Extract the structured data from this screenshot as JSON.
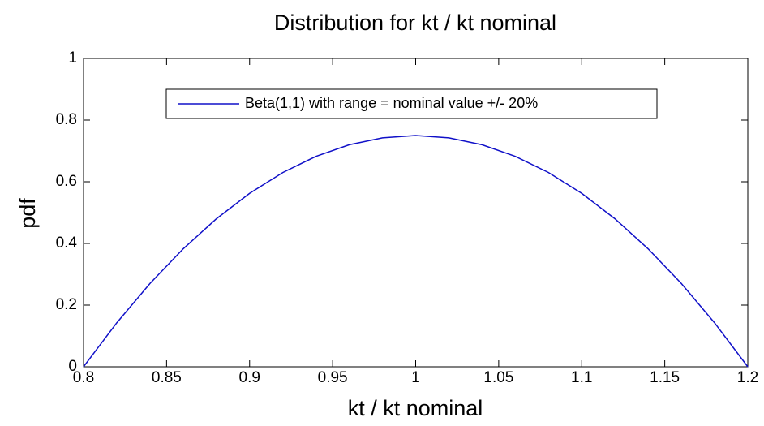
{
  "chart_data": {
    "type": "line",
    "title": "Distribution for kt / kt nominal",
    "xlabel": "kt / kt nominal",
    "ylabel": "pdf",
    "x": [
      0.8,
      0.82,
      0.84,
      0.86,
      0.88,
      0.9,
      0.92,
      0.94,
      0.96,
      0.98,
      1.0,
      1.02,
      1.04,
      1.06,
      1.08,
      1.1,
      1.12,
      1.14,
      1.16,
      1.18,
      1.2
    ],
    "series": [
      {
        "name": "Beta(1,1) with range = nominal value +/- 20%",
        "color": "#1010c8",
        "values": [
          0,
          0.1425,
          0.27,
          0.3825,
          0.48,
          0.5625,
          0.63,
          0.6825,
          0.72,
          0.7425,
          0.75,
          0.7425,
          0.72,
          0.6825,
          0.63,
          0.5625,
          0.48,
          0.3825,
          0.27,
          0.1425,
          0
        ]
      }
    ],
    "xlim": [
      0.8,
      1.2
    ],
    "xticks": [
      0.8,
      0.85,
      0.9,
      0.95,
      1,
      1.05,
      1.1,
      1.15,
      1.2
    ],
    "ylim": [
      0,
      1
    ],
    "yticks": [
      0,
      0.2,
      0.4,
      0.6,
      0.8,
      1
    ],
    "legend": "top"
  }
}
